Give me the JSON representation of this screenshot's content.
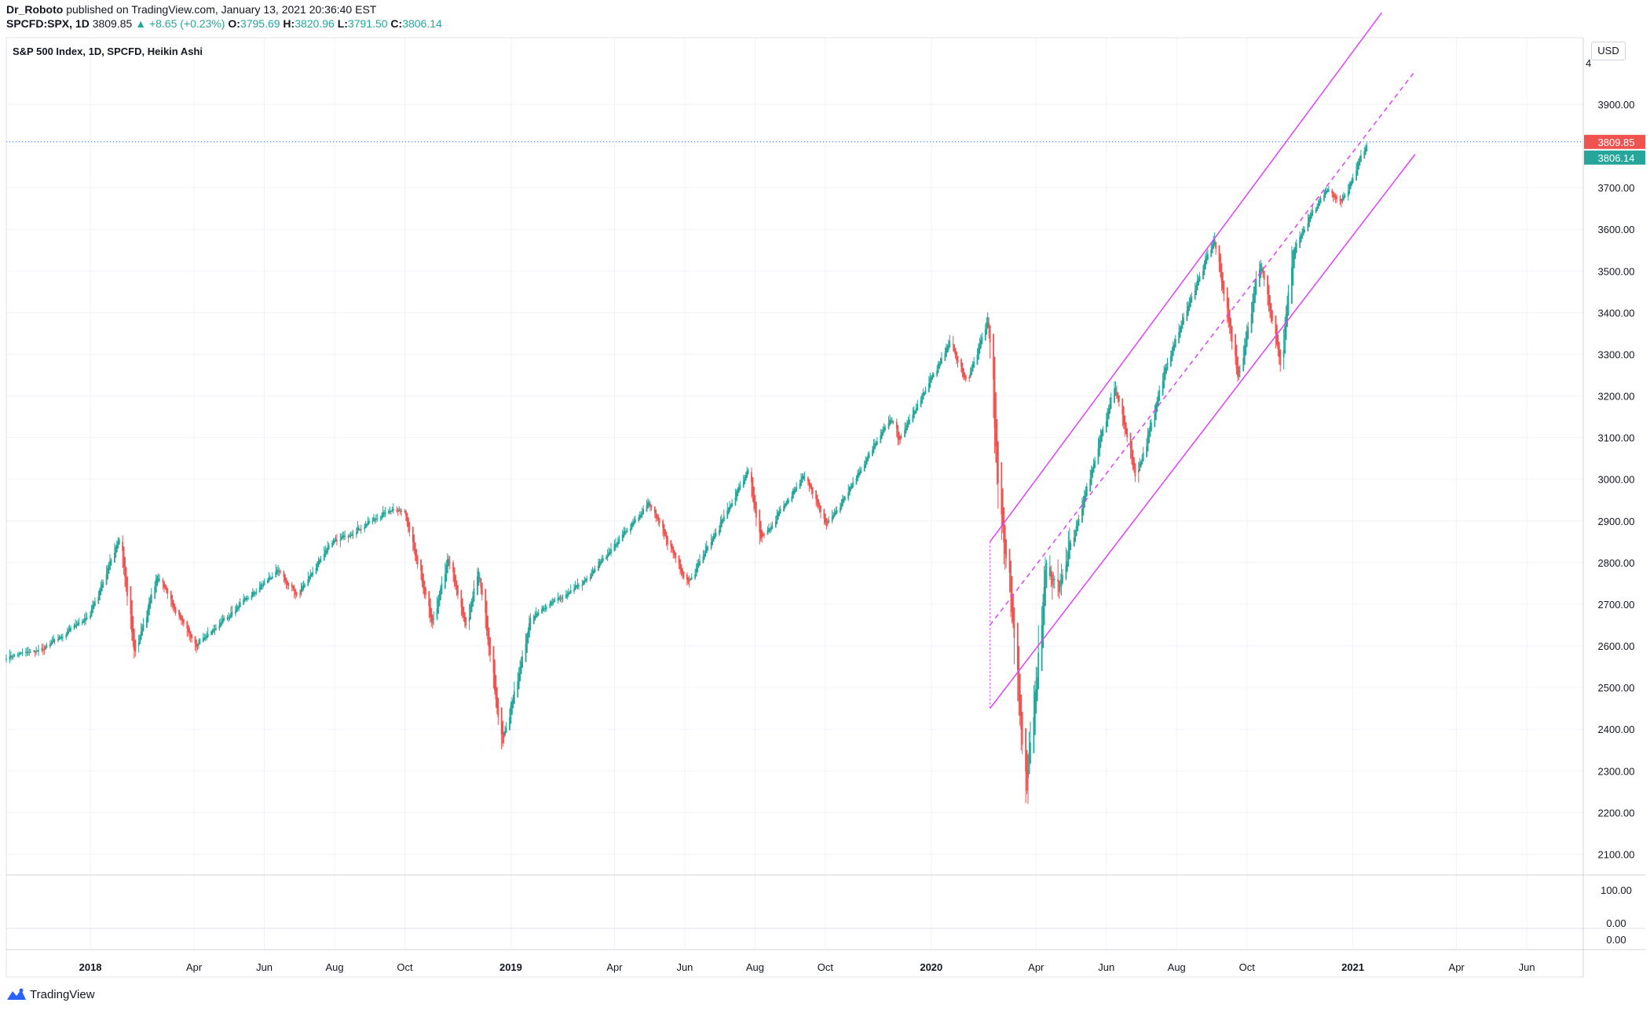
{
  "header": {
    "publisher": "Dr_Roboto",
    "published_text": "published on TradingView.com, January 13, 2021 20:36:40 EST",
    "symbol": "SPCFD:SPX, 1D",
    "last": "3809.85",
    "change": "▲ +8.65 (+0.23%)",
    "open_label": "O:",
    "open": "3795.69",
    "high_label": "H:",
    "high": "3820.96",
    "low_label": "L:",
    "low": "3791.50",
    "close_label": "C:",
    "close": "3806.14"
  },
  "footer": {
    "brand": "TradingView"
  },
  "colors": {
    "up": "#26a69a",
    "down": "#ef5350",
    "channel": "#e040fb",
    "last_price_line": "#2962ff"
  },
  "chart_data": {
    "type": "candlestick",
    "title": "S&P 500 Index, 1D, SPCFD, Heikin Ashi",
    "currency": "USD",
    "ylim": [
      2050,
      4060
    ],
    "y_ticks": [
      2100,
      2200,
      2300,
      2400,
      2500,
      2600,
      2700,
      2800,
      2900,
      3000,
      3100,
      3200,
      3300,
      3400,
      3500,
      3600,
      3700,
      3800,
      3900
    ],
    "y_tick_labels": [
      "2100.00",
      "2200.00",
      "2300.00",
      "2400.00",
      "2500.00",
      "2600.00",
      "2700.00",
      "2800.00",
      "2900.00",
      "3000.00",
      "3100.00",
      "3200.00",
      "3300.00",
      "3400.00",
      "3500.00",
      "3600.00",
      "3700.00",
      "",
      "3900.00"
    ],
    "y_top_label": "4",
    "x_range": [
      "2017-10-20",
      "2021-07-20"
    ],
    "x_ticks": [
      {
        "date": "2018-01-01",
        "label": "2018",
        "bold": true
      },
      {
        "date": "2018-04-01",
        "label": "Apr"
      },
      {
        "date": "2018-06-01",
        "label": "Jun"
      },
      {
        "date": "2018-08-01",
        "label": "Aug"
      },
      {
        "date": "2018-10-01",
        "label": "Oct"
      },
      {
        "date": "2019-01-01",
        "label": "2019",
        "bold": true
      },
      {
        "date": "2019-04-01",
        "label": "Apr"
      },
      {
        "date": "2019-06-01",
        "label": "Jun"
      },
      {
        "date": "2019-08-01",
        "label": "Aug"
      },
      {
        "date": "2019-10-01",
        "label": "Oct"
      },
      {
        "date": "2020-01-01",
        "label": "2020",
        "bold": true
      },
      {
        "date": "2020-04-01",
        "label": "Apr"
      },
      {
        "date": "2020-06-01",
        "label": "Jun"
      },
      {
        "date": "2020-08-01",
        "label": "Aug"
      },
      {
        "date": "2020-10-01",
        "label": "Oct"
      },
      {
        "date": "2021-01-01",
        "label": "2021",
        "bold": true
      },
      {
        "date": "2021-04-01",
        "label": "Apr"
      },
      {
        "date": "2021-06-01",
        "label": "Jun"
      }
    ],
    "anchors": [
      {
        "date": "2017-10-20",
        "value": 2575
      },
      {
        "date": "2017-11-20",
        "value": 2590
      },
      {
        "date": "2017-12-31",
        "value": 2675
      },
      {
        "date": "2018-01-26",
        "value": 2860
      },
      {
        "date": "2018-02-08",
        "value": 2580
      },
      {
        "date": "2018-02-27",
        "value": 2770
      },
      {
        "date": "2018-04-02",
        "value": 2600
      },
      {
        "date": "2018-05-15",
        "value": 2710
      },
      {
        "date": "2018-06-12",
        "value": 2780
      },
      {
        "date": "2018-06-29",
        "value": 2720
      },
      {
        "date": "2018-07-26",
        "value": 2840
      },
      {
        "date": "2018-09-20",
        "value": 2930
      },
      {
        "date": "2018-10-01",
        "value": 2920
      },
      {
        "date": "2018-10-24",
        "value": 2650
      },
      {
        "date": "2018-11-07",
        "value": 2810
      },
      {
        "date": "2018-11-23",
        "value": 2640
      },
      {
        "date": "2018-12-03",
        "value": 2790
      },
      {
        "date": "2018-12-24",
        "value": 2360
      },
      {
        "date": "2019-01-18",
        "value": 2670
      },
      {
        "date": "2019-03-08",
        "value": 2760
      },
      {
        "date": "2019-04-30",
        "value": 2945
      },
      {
        "date": "2019-06-03",
        "value": 2750
      },
      {
        "date": "2019-07-26",
        "value": 3020
      },
      {
        "date": "2019-08-05",
        "value": 2850
      },
      {
        "date": "2019-09-12",
        "value": 3010
      },
      {
        "date": "2019-10-02",
        "value": 2890
      },
      {
        "date": "2019-11-27",
        "value": 3150
      },
      {
        "date": "2019-12-03",
        "value": 3090
      },
      {
        "date": "2020-01-17",
        "value": 3330
      },
      {
        "date": "2020-01-31",
        "value": 3230
      },
      {
        "date": "2020-02-19",
        "value": 3390
      },
      {
        "date": "2020-02-28",
        "value": 2950
      },
      {
        "date": "2020-03-09",
        "value": 2750
      },
      {
        "date": "2020-03-23",
        "value": 2240
      },
      {
        "date": "2020-04-09",
        "value": 2790
      },
      {
        "date": "2020-04-21",
        "value": 2740
      },
      {
        "date": "2020-06-08",
        "value": 3230
      },
      {
        "date": "2020-06-26",
        "value": 3000
      },
      {
        "date": "2020-07-22",
        "value": 3270
      },
      {
        "date": "2020-09-02",
        "value": 3580
      },
      {
        "date": "2020-09-23",
        "value": 3240
      },
      {
        "date": "2020-10-12",
        "value": 3530
      },
      {
        "date": "2020-10-30",
        "value": 3270
      },
      {
        "date": "2020-11-09",
        "value": 3550
      },
      {
        "date": "2020-12-08",
        "value": 3700
      },
      {
        "date": "2020-12-21",
        "value": 3660
      },
      {
        "date": "2021-01-13",
        "value": 3809
      }
    ],
    "channel_lines": [
      {
        "style": "solid",
        "from": {
          "date": "2020-02-21",
          "value": 2850
        },
        "to": {
          "date": "2021-01-26",
          "value": 4120
        }
      },
      {
        "style": "dashed",
        "from": {
          "date": "2020-02-21",
          "value": 2650
        },
        "to": {
          "date": "2021-02-24",
          "value": 3980
        }
      },
      {
        "style": "solid",
        "from": {
          "date": "2020-02-21",
          "value": 2450
        },
        "to": {
          "date": "2021-02-24",
          "value": 3780
        }
      }
    ],
    "last_price": {
      "value": 3809.85,
      "label": "3809.85"
    },
    "close_price": {
      "value": 3806.14,
      "label": "3806.14"
    },
    "lower_pane": {
      "ticks": [
        {
          "value": 100,
          "label": "100.00"
        },
        {
          "value": 0,
          "label": "0.00"
        }
      ],
      "extra_label": "0.00"
    }
  }
}
